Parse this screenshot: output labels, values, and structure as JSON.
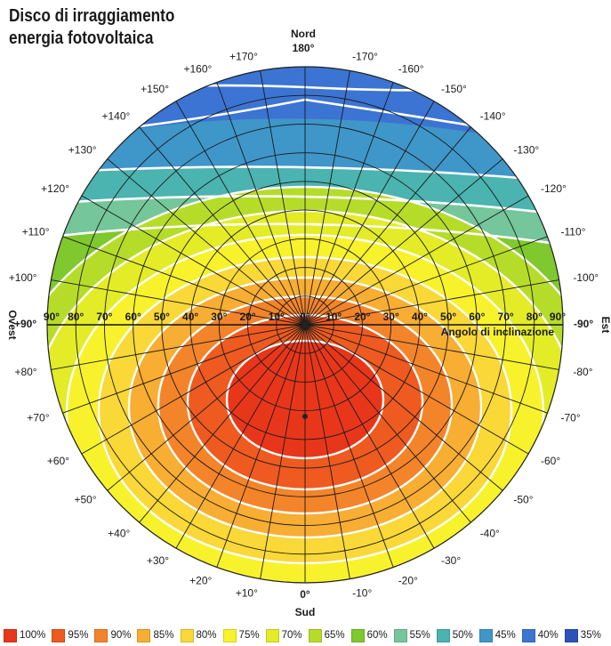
{
  "title": {
    "line1": "Disco di irraggiamento",
    "line2": "energia fotovoltaica"
  },
  "compass": {
    "north": "Nord",
    "south": "Sud",
    "east": "Est",
    "west": "Ovest"
  },
  "tilt_axis_label": "Angolo di inclinazione",
  "tilt_labels": [
    "90°",
    "80°",
    "70°",
    "60°",
    "50°",
    "40°",
    "30°",
    "20°",
    "10°",
    "0°",
    "10°",
    "20°",
    "30°",
    "40°",
    "50°",
    "60°",
    "70°",
    "80°",
    "90°"
  ],
  "azimuth_labels": {
    "top": "180°",
    "bottom": "0°",
    "left_horizon": "+90°",
    "right_horizon": "-90°",
    "upper_left": [
      "+170°",
      "+160°",
      "+150°",
      "+140°",
      "+130°",
      "+120°",
      "+110°",
      "+100°"
    ],
    "upper_right": [
      "-170°",
      "-160°",
      "-150°",
      "-140°",
      "-130°",
      "-120°",
      "-110°",
      "-100°"
    ],
    "lower_left": [
      "+80°",
      "+70°",
      "+60°",
      "+50°",
      "+40°",
      "+30°",
      "+20°",
      "+10°"
    ],
    "lower_right": [
      "-80°",
      "-70°",
      "-60°",
      "-50°",
      "-40°",
      "-30°",
      "-20°",
      "-10°"
    ]
  },
  "legend": [
    {
      "label": "100%",
      "color": "#e8361b"
    },
    {
      "label": "95%",
      "color": "#ee5a20"
    },
    {
      "label": "90%",
      "color": "#f3842a"
    },
    {
      "label": "85%",
      "color": "#f8ad33"
    },
    {
      "label": "80%",
      "color": "#f9d838"
    },
    {
      "label": "75%",
      "color": "#f8f22c"
    },
    {
      "label": "70%",
      "color": "#e3ec27"
    },
    {
      "label": "65%",
      "color": "#b6dc2a"
    },
    {
      "label": "60%",
      "color": "#7fc82d"
    },
    {
      "label": "55%",
      "color": "#75c69a"
    },
    {
      "label": "50%",
      "color": "#4bb3b0"
    },
    {
      "label": "45%",
      "color": "#3f96c9"
    },
    {
      "label": "40%",
      "color": "#3b74d2"
    },
    {
      "label": "35%",
      "color": "#2b52b8"
    }
  ]
}
